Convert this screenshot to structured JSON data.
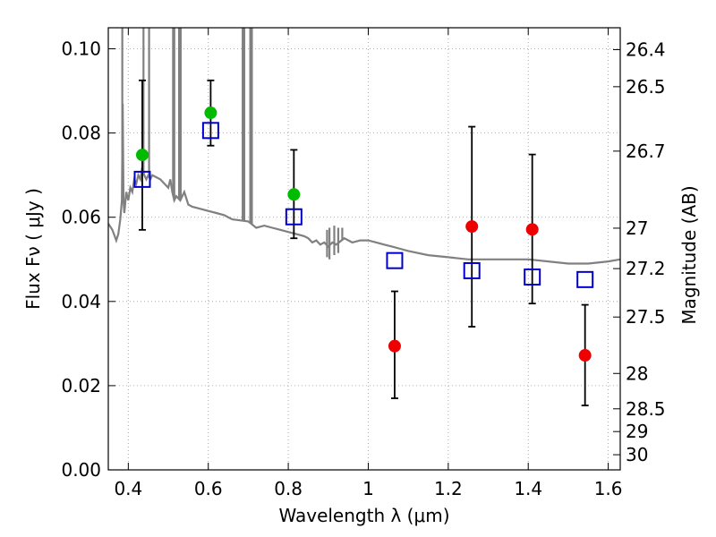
{
  "chart_data": {
    "type": "scatter",
    "title": "",
    "xlabel": "Wavelength  λ (μm)",
    "ylabel": "Flux  Fν  ( μJy )",
    "ylabel_right": "Magnitude (AB)",
    "xlim": [
      0.35,
      1.63
    ],
    "ylim": [
      0.0,
      0.105
    ],
    "grid": true,
    "x_ticks": [
      0.4,
      0.6,
      0.8,
      1.0,
      1.2,
      1.4,
      1.6
    ],
    "x_tick_labels": [
      "0.4",
      "0.6",
      "0.8",
      "1",
      "1.2",
      "1.4",
      "1.6"
    ],
    "y_ticks": [
      0.0,
      0.02,
      0.04,
      0.06,
      0.08,
      0.1
    ],
    "y_tick_labels": [
      "0.00",
      "0.02",
      "0.04",
      "0.06",
      "0.08",
      "0.10"
    ],
    "right_axis_ticks": [
      {
        "label": "26.4",
        "flux": 0.0998
      },
      {
        "label": "26.5",
        "flux": 0.091
      },
      {
        "label": "26.7",
        "flux": 0.0757
      },
      {
        "label": "27",
        "flux": 0.0574
      },
      {
        "label": "27.2",
        "flux": 0.0478
      },
      {
        "label": "27.5",
        "flux": 0.0363
      },
      {
        "label": "28",
        "flux": 0.0229
      },
      {
        "label": "28.5",
        "flux": 0.0145
      },
      {
        "label": "29",
        "flux": 0.0091
      },
      {
        "label": "30",
        "flux": 0.0036
      }
    ],
    "colors": {
      "green": "#00bb00",
      "red": "#ee0000",
      "model": "#0000cc",
      "sed": "#808080",
      "errorbar": "#000000",
      "grid": "#999999"
    },
    "series": [
      {
        "marker": "circle-green",
        "points": [
          {
            "x": 0.435,
            "y": 0.0748,
            "yerr_low": 0.057,
            "yerr_high": 0.0925
          },
          {
            "x": 0.606,
            "y": 0.0848,
            "yerr_low": 0.077,
            "yerr_high": 0.0925
          },
          {
            "x": 0.814,
            "y": 0.0654,
            "yerr_low": 0.055,
            "yerr_high": 0.076
          }
        ]
      },
      {
        "marker": "circle-red",
        "points": [
          {
            "x": 1.066,
            "y": 0.0294,
            "yerr_low": 0.017,
            "yerr_high": 0.0424
          },
          {
            "x": 1.259,
            "y": 0.0578,
            "yerr_low": 0.034,
            "yerr_high": 0.0815
          },
          {
            "x": 1.41,
            "y": 0.0571,
            "yerr_low": 0.0395,
            "yerr_high": 0.0749
          },
          {
            "x": 1.542,
            "y": 0.0272,
            "yerr_low": 0.0153,
            "yerr_high": 0.0392
          }
        ]
      },
      {
        "marker": "square-open-blue",
        "points": [
          {
            "x": 0.435,
            "y": 0.069
          },
          {
            "x": 0.606,
            "y": 0.0806
          },
          {
            "x": 0.814,
            "y": 0.0601
          },
          {
            "x": 1.066,
            "y": 0.0497
          },
          {
            "x": 1.259,
            "y": 0.0473
          },
          {
            "x": 1.41,
            "y": 0.0458
          },
          {
            "x": 1.542,
            "y": 0.0452
          }
        ]
      },
      {
        "marker": "line-gray",
        "points": [
          [
            0.35,
            0.0585
          ],
          [
            0.36,
            0.057
          ],
          [
            0.37,
            0.0545
          ],
          [
            0.375,
            0.056
          ],
          [
            0.38,
            0.0595
          ],
          [
            0.384,
            0.064
          ],
          [
            0.386,
            0.087
          ],
          [
            0.388,
            0.064
          ],
          [
            0.39,
            0.061
          ],
          [
            0.395,
            0.066
          ],
          [
            0.4,
            0.064
          ],
          [
            0.405,
            0.067
          ],
          [
            0.41,
            0.066
          ],
          [
            0.415,
            0.069
          ],
          [
            0.42,
            0.068
          ],
          [
            0.425,
            0.07
          ],
          [
            0.43,
            0.069
          ],
          [
            0.435,
            0.072
          ],
          [
            0.44,
            0.07
          ],
          [
            0.445,
            0.069
          ],
          [
            0.45,
            0.07
          ],
          [
            0.455,
            0.069
          ],
          [
            0.46,
            0.07
          ],
          [
            0.47,
            0.0695
          ],
          [
            0.48,
            0.069
          ],
          [
            0.49,
            0.068
          ],
          [
            0.5,
            0.067
          ],
          [
            0.505,
            0.069
          ],
          [
            0.51,
            0.066
          ],
          [
            0.515,
            0.064
          ],
          [
            0.52,
            0.065
          ],
          [
            0.53,
            0.064
          ],
          [
            0.54,
            0.066
          ],
          [
            0.55,
            0.063
          ],
          [
            0.56,
            0.0625
          ],
          [
            0.58,
            0.062
          ],
          [
            0.6,
            0.0615
          ],
          [
            0.62,
            0.061
          ],
          [
            0.64,
            0.0605
          ],
          [
            0.66,
            0.0595
          ],
          [
            0.7,
            0.059
          ],
          [
            0.72,
            0.0575
          ],
          [
            0.74,
            0.058
          ],
          [
            0.76,
            0.0575
          ],
          [
            0.78,
            0.057
          ],
          [
            0.8,
            0.0565
          ],
          [
            0.82,
            0.056
          ],
          [
            0.84,
            0.0555
          ],
          [
            0.85,
            0.055
          ],
          [
            0.86,
            0.054
          ],
          [
            0.87,
            0.0545
          ],
          [
            0.88,
            0.0535
          ],
          [
            0.89,
            0.054
          ],
          [
            0.9,
            0.053
          ],
          [
            0.91,
            0.054
          ],
          [
            0.92,
            0.0535
          ],
          [
            0.94,
            0.055
          ],
          [
            0.96,
            0.054
          ],
          [
            0.98,
            0.0545
          ],
          [
            1.0,
            0.0545
          ],
          [
            1.02,
            0.054
          ],
          [
            1.04,
            0.0535
          ],
          [
            1.06,
            0.053
          ],
          [
            1.08,
            0.0525
          ],
          [
            1.1,
            0.052
          ],
          [
            1.15,
            0.051
          ],
          [
            1.2,
            0.0505
          ],
          [
            1.25,
            0.05
          ],
          [
            1.3,
            0.05
          ],
          [
            1.35,
            0.05
          ],
          [
            1.4,
            0.05
          ],
          [
            1.45,
            0.0495
          ],
          [
            1.5,
            0.049
          ],
          [
            1.55,
            0.049
          ],
          [
            1.6,
            0.0495
          ],
          [
            1.63,
            0.05
          ]
        ],
        "spikes": [
          {
            "x": 0.385,
            "y_max": 0.105
          },
          {
            "x": 0.438,
            "y_max": 0.105
          },
          {
            "x": 0.452,
            "y_max": 0.105
          },
          {
            "x": 0.512,
            "y_max": 0.105
          },
          {
            "x": 0.515,
            "y_max": 0.105
          },
          {
            "x": 0.527,
            "y_max": 0.105
          },
          {
            "x": 0.531,
            "y_max": 0.105
          },
          {
            "x": 0.686,
            "y_max": 0.105
          },
          {
            "x": 0.69,
            "y_max": 0.105
          },
          {
            "x": 0.705,
            "y_max": 0.105
          },
          {
            "x": 0.709,
            "y_max": 0.105
          },
          {
            "x": 0.897,
            "y_max": 0.057
          },
          {
            "x": 0.903,
            "y_max": 0.0575
          },
          {
            "x": 0.915,
            "y_max": 0.058
          },
          {
            "x": 0.925,
            "y_max": 0.0575
          },
          {
            "x": 0.935,
            "y_max": 0.0575
          }
        ],
        "dips": [
          {
            "x": 0.897,
            "y_min": 0.0505
          },
          {
            "x": 0.903,
            "y_min": 0.05
          },
          {
            "x": 0.915,
            "y_min": 0.051
          },
          {
            "x": 0.925,
            "y_min": 0.0515
          }
        ]
      }
    ]
  }
}
